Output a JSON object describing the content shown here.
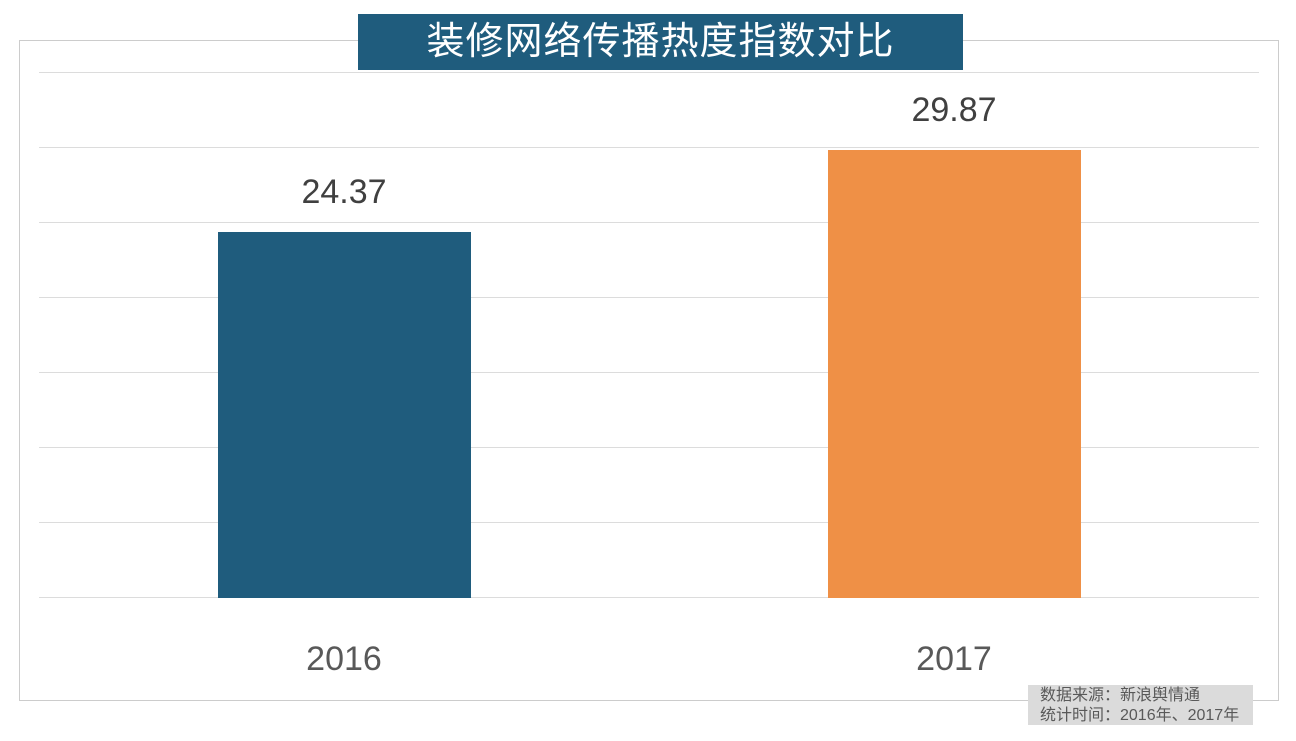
{
  "title": {
    "text": "装修网络传播热度指数对比",
    "bg_color": "#1F5C7D",
    "text_color": "#FFFFFF"
  },
  "chart_data": {
    "type": "bar",
    "title": "装修网络传播热度指数对比",
    "categories": [
      "2016",
      "2017"
    ],
    "values": [
      24.37,
      29.87
    ],
    "value_labels": [
      "24.37",
      "29.87"
    ],
    "bar_colors": [
      "#1F5C7D",
      "#EF9046"
    ],
    "xlabel": "",
    "ylabel": "",
    "ylim": [
      0,
      35
    ],
    "y_tick_step": 5,
    "y_tick_labels_visible": false,
    "grid": true,
    "gridline_color": "#DCDCDC",
    "legend_position": "none",
    "value_label_color": "#404040",
    "category_label_color": "#595959"
  },
  "footer": {
    "source_line": "数据来源：新浪舆情通",
    "period_line": "统计时间：2016年、2017年"
  },
  "colors": {
    "accent_teal": "#1F5C7D",
    "accent_orange": "#EF9046",
    "frame_border": "#CCCCCC",
    "footer_bg": "#DBDBDB"
  }
}
